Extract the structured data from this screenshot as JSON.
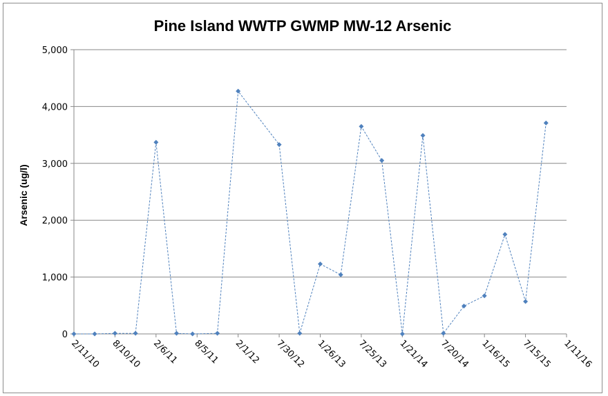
{
  "chart_data": {
    "type": "line",
    "title": "Pine Island WWTP GWMP MW-12 Arsenic",
    "xlabel": "",
    "ylabel": "Arsenic (ug/l)",
    "ylim": [
      0,
      5000
    ],
    "yticks": [
      0,
      1000,
      2000,
      3000,
      4000,
      5000
    ],
    "ytick_labels": [
      "0",
      "1,000",
      "2,000",
      "3,000",
      "4,000",
      "5,000"
    ],
    "xlim": [
      "2010-02-11",
      "2016-01-11"
    ],
    "xtick_labels": [
      "2/11/10",
      "8/10/10",
      "2/6/11",
      "8/5/11",
      "2/1/12",
      "7/30/12",
      "1/26/13",
      "7/25/13",
      "1/21/14",
      "7/20/14",
      "1/16/15",
      "7/15/15",
      "1/11/16"
    ],
    "grid": true,
    "legend": "none",
    "line_style": "dashed",
    "color": "#4f81bd",
    "series": [
      {
        "x": [
          "2010-02-11",
          "2010-05-13",
          "2010-08-10",
          "2010-11-08",
          "2011-02-06",
          "2011-05-07",
          "2011-07-16",
          "2011-11-02",
          "2012-02-01",
          "2012-07-30",
          "2012-10-28",
          "2013-01-26",
          "2013-04-26",
          "2013-07-25",
          "2013-10-23",
          "2014-01-21",
          "2014-04-21",
          "2014-07-20",
          "2014-10-18",
          "2015-01-16",
          "2015-04-16",
          "2015-07-15",
          "2015-10-13"
        ],
        "y": [
          0,
          0,
          10,
          10,
          3370,
          10,
          0,
          10,
          4270,
          3330,
          10,
          1230,
          1040,
          3650,
          3050,
          0,
          3490,
          10,
          490,
          670,
          1750,
          570,
          3710
        ]
      }
    ]
  }
}
